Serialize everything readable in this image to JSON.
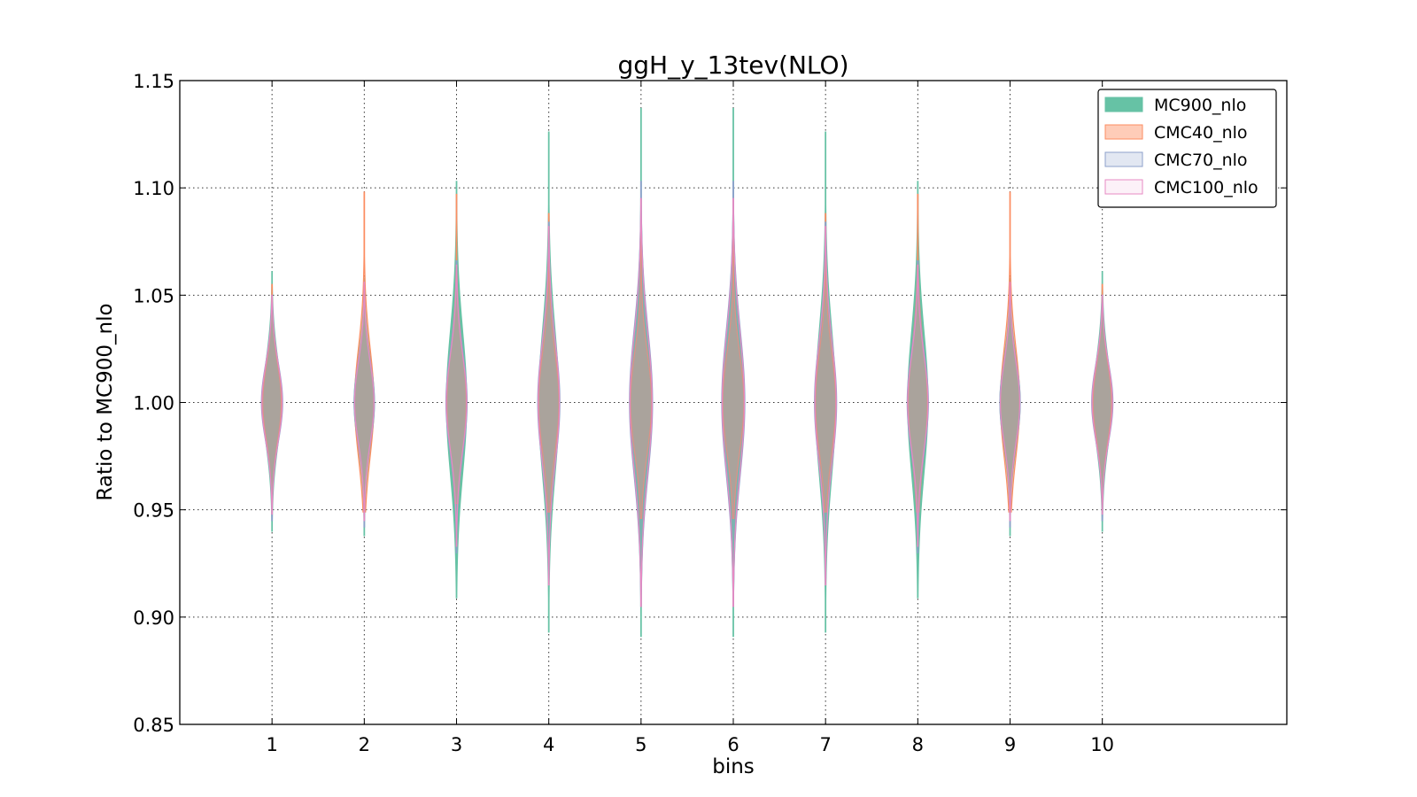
{
  "chart_data": {
    "type": "violin",
    "title": "ggH_y_13tev(NLO)",
    "xlabel": "bins",
    "ylabel": "Ratio to MC900_nlo",
    "xlim": [
      0,
      12
    ],
    "ylim": [
      0.85,
      1.15
    ],
    "x_ticks": [
      "1",
      "2",
      "3",
      "4",
      "5",
      "6",
      "7",
      "8",
      "9",
      "10"
    ],
    "y_ticks": [
      "0.85",
      "0.90",
      "0.95",
      "1.00",
      "1.05",
      "1.10",
      "1.15"
    ],
    "grid": true,
    "legend_position": "top-right",
    "series": [
      {
        "name": "MC900_nlo",
        "fill": "#66c2a5",
        "stroke": "#66c2a5",
        "fill_opacity": 1.0,
        "bins": [
          {
            "x": 1,
            "min": 0.94,
            "max": 1.061,
            "width": 0.2
          },
          {
            "x": 2,
            "min": 0.938,
            "max": 1.058,
            "width": 0.22
          },
          {
            "x": 3,
            "min": 0.909,
            "max": 1.103,
            "width": 0.22
          },
          {
            "x": 4,
            "min": 0.893,
            "max": 1.126,
            "width": 0.22
          },
          {
            "x": 5,
            "min": 0.891,
            "max": 1.137,
            "width": 0.22
          },
          {
            "x": 6,
            "min": 0.891,
            "max": 1.137,
            "width": 0.22
          },
          {
            "x": 7,
            "min": 0.893,
            "max": 1.126,
            "width": 0.22
          },
          {
            "x": 8,
            "min": 0.909,
            "max": 1.103,
            "width": 0.22
          },
          {
            "x": 9,
            "min": 0.938,
            "max": 1.058,
            "width": 0.22
          },
          {
            "x": 10,
            "min": 0.94,
            "max": 1.061,
            "width": 0.2
          }
        ]
      },
      {
        "name": "CMC40_nlo",
        "fill": "#fc8d62",
        "stroke": "#fc8d62",
        "fill_opacity": 0.45,
        "bins": [
          {
            "x": 1,
            "min": 0.953,
            "max": 1.055,
            "width": 0.2
          },
          {
            "x": 2,
            "min": 0.949,
            "max": 1.098,
            "width": 0.21
          },
          {
            "x": 3,
            "min": 0.953,
            "max": 1.097,
            "width": 0.21
          },
          {
            "x": 4,
            "min": 0.949,
            "max": 1.088,
            "width": 0.22
          },
          {
            "x": 5,
            "min": 0.946,
            "max": 1.081,
            "width": 0.23
          },
          {
            "x": 6,
            "min": 0.946,
            "max": 1.081,
            "width": 0.23
          },
          {
            "x": 7,
            "min": 0.949,
            "max": 1.088,
            "width": 0.22
          },
          {
            "x": 8,
            "min": 0.949,
            "max": 1.097,
            "width": 0.21
          },
          {
            "x": 9,
            "min": 0.949,
            "max": 1.098,
            "width": 0.21
          },
          {
            "x": 10,
            "min": 0.953,
            "max": 1.055,
            "width": 0.2
          }
        ]
      },
      {
        "name": "CMC70_nlo",
        "fill": "#8da0cb",
        "stroke": "#8da0cb",
        "fill_opacity": 0.25,
        "bins": [
          {
            "x": 1,
            "min": 0.945,
            "max": 1.046,
            "width": 0.23
          },
          {
            "x": 2,
            "min": 0.942,
            "max": 1.052,
            "width": 0.22
          },
          {
            "x": 3,
            "min": 0.93,
            "max": 1.066,
            "width": 0.23
          },
          {
            "x": 4,
            "min": 0.918,
            "max": 1.084,
            "width": 0.24
          },
          {
            "x": 5,
            "min": 0.905,
            "max": 1.103,
            "width": 0.25
          },
          {
            "x": 6,
            "min": 0.905,
            "max": 1.103,
            "width": 0.25
          },
          {
            "x": 7,
            "min": 0.918,
            "max": 1.084,
            "width": 0.24
          },
          {
            "x": 8,
            "min": 0.93,
            "max": 1.066,
            "width": 0.23
          },
          {
            "x": 9,
            "min": 0.942,
            "max": 1.052,
            "width": 0.22
          },
          {
            "x": 10,
            "min": 0.945,
            "max": 1.046,
            "width": 0.23
          }
        ]
      },
      {
        "name": "CMC100_nlo",
        "fill": "#e78ac3",
        "stroke": "#e78ac3",
        "fill_opacity": 0.12,
        "bins": [
          {
            "x": 1,
            "min": 0.948,
            "max": 1.05,
            "width": 0.22
          },
          {
            "x": 2,
            "min": 0.945,
            "max": 1.056,
            "width": 0.21
          },
          {
            "x": 3,
            "min": 0.933,
            "max": 1.064,
            "width": 0.22
          },
          {
            "x": 4,
            "min": 0.915,
            "max": 1.082,
            "width": 0.23
          },
          {
            "x": 5,
            "min": 0.905,
            "max": 1.095,
            "width": 0.24
          },
          {
            "x": 6,
            "min": 0.905,
            "max": 1.095,
            "width": 0.24
          },
          {
            "x": 7,
            "min": 0.915,
            "max": 1.082,
            "width": 0.23
          },
          {
            "x": 8,
            "min": 0.933,
            "max": 1.064,
            "width": 0.22
          },
          {
            "x": 9,
            "min": 0.945,
            "max": 1.056,
            "width": 0.21
          },
          {
            "x": 10,
            "min": 0.948,
            "max": 1.05,
            "width": 0.22
          }
        ]
      }
    ]
  }
}
